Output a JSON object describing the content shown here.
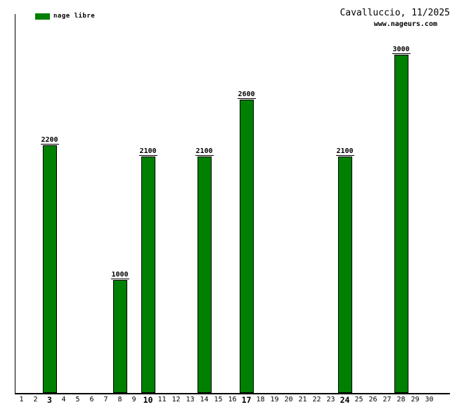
{
  "header": {
    "title": "Cavalluccio, 11/2025",
    "website": "www.nageurs.com"
  },
  "legend": {
    "items": [
      {
        "label": "nage libre",
        "color": "#008000"
      }
    ]
  },
  "colors": {
    "bar_fill": "#008000",
    "bar_border": "#000000",
    "axis": "#000000",
    "text": "#000000",
    "background": "#ffffff"
  },
  "chart_data": {
    "type": "bar",
    "title": "Cavalluccio, 11/2025",
    "subtitle": "www.nageurs.com",
    "series_name": "nage libre",
    "xlabel": "",
    "ylabel": "",
    "x_ticks": [
      1,
      2,
      3,
      4,
      5,
      6,
      7,
      8,
      9,
      10,
      11,
      12,
      13,
      14,
      15,
      16,
      17,
      18,
      19,
      20,
      21,
      22,
      23,
      24,
      25,
      26,
      27,
      28,
      29,
      30
    ],
    "bold_x_ticks": [
      3,
      10,
      17,
      24
    ],
    "bars": [
      {
        "day": 3,
        "value": 2200
      },
      {
        "day": 8,
        "value": 1000
      },
      {
        "day": 10,
        "value": 2100
      },
      {
        "day": 14,
        "value": 2100
      },
      {
        "day": 17,
        "value": 2600
      },
      {
        "day": 24,
        "value": 2100
      },
      {
        "day": 28,
        "value": 3000
      }
    ],
    "ylim": [
      0,
      3360
    ],
    "grid": false,
    "legend_position": "top-left",
    "value_labels": "above-bar-underlined"
  }
}
